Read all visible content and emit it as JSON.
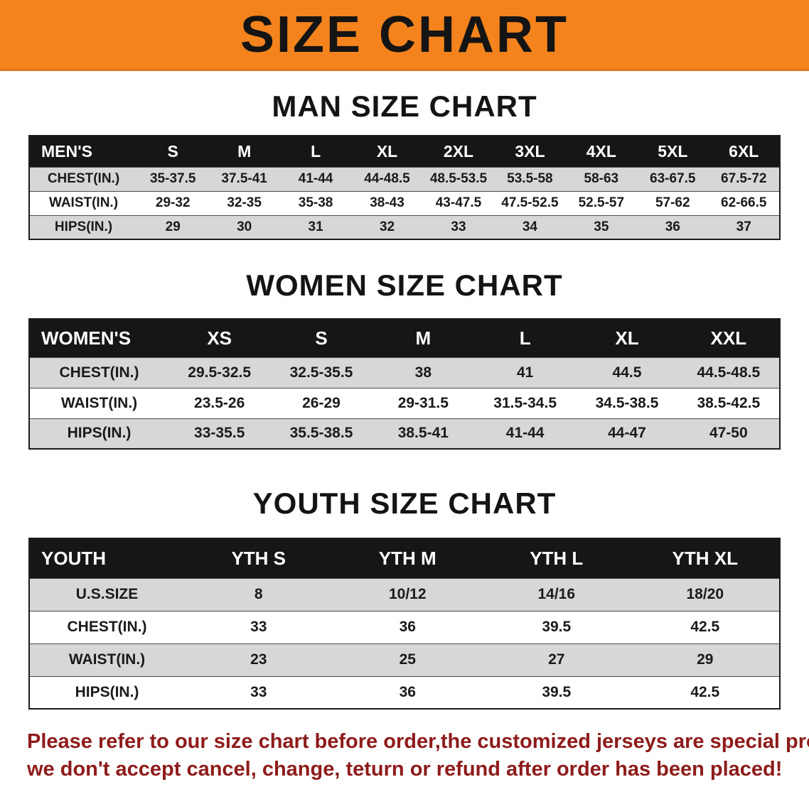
{
  "colors": {
    "banner_orange": "#f4831d",
    "table_header_black": "#161616",
    "row_stripe_gray": "#d7d7d7",
    "footer_red": "#8e1b1b"
  },
  "banner": {
    "title": "SIZE CHART"
  },
  "sections": [
    {
      "title": "MAN SIZE CHART",
      "table": {
        "header": [
          "MEN'S",
          "S",
          "M",
          "L",
          "XL",
          "2XL",
          "3XL",
          "4XL",
          "5XL",
          "6XL"
        ],
        "rows": [
          [
            "CHEST(IN.)",
            "35-37.5",
            "37.5-41",
            "41-44",
            "44-48.5",
            "48.5-53.5",
            "53.5-58",
            "58-63",
            "63-67.5",
            "67.5-72"
          ],
          [
            "WAIST(IN.)",
            "29-32",
            "32-35",
            "35-38",
            "38-43",
            "43-47.5",
            "47.5-52.5",
            "52.5-57",
            "57-62",
            "62-66.5"
          ],
          [
            "HIPS(IN.)",
            "29",
            "30",
            "31",
            "32",
            "33",
            "34",
            "35",
            "36",
            "37"
          ]
        ]
      }
    },
    {
      "title": "WOMEN SIZE CHART",
      "table": {
        "header": [
          "WOMEN'S",
          "XS",
          "S",
          "M",
          "L",
          "XL",
          "XXL"
        ],
        "rows": [
          [
            "CHEST(IN.)",
            "29.5-32.5",
            "32.5-35.5",
            "38",
            "41",
            "44.5",
            "44.5-48.5"
          ],
          [
            "WAIST(IN.)",
            "23.5-26",
            "26-29",
            "29-31.5",
            "31.5-34.5",
            "34.5-38.5",
            "38.5-42.5"
          ],
          [
            "HIPS(IN.)",
            "33-35.5",
            "35.5-38.5",
            "38.5-41",
            "41-44",
            "44-47",
            "47-50"
          ]
        ]
      }
    },
    {
      "title": "YOUTH SIZE CHART",
      "table": {
        "header": [
          "YOUTH",
          "YTH S",
          "YTH M",
          "YTH L",
          "YTH XL"
        ],
        "rows": [
          [
            "U.S.SIZE",
            "8",
            "10/12",
            "14/16",
            "18/20"
          ],
          [
            "CHEST(IN.)",
            "33",
            "36",
            "39.5",
            "42.5"
          ],
          [
            "WAIST(IN.)",
            "23",
            "25",
            "27",
            "29"
          ],
          [
            "HIPS(IN.)",
            "33",
            "36",
            "39.5",
            "42.5"
          ]
        ]
      }
    }
  ],
  "footer": {
    "line1": "Please refer to our size chart before order,the customized jerseys are special products,",
    "line2": "we don't accept cancel, change, teturn or refund after order has been placed!"
  }
}
